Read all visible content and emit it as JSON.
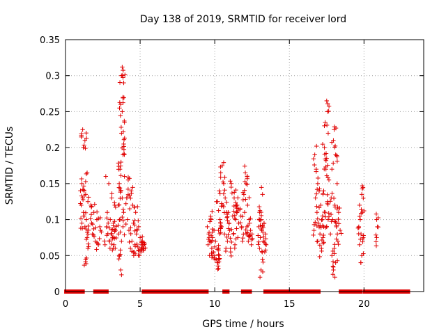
{
  "chart_data": {
    "type": "scatter",
    "title": "Day 138 of 2019, SRMTID for receiver lord",
    "xlabel": "GPS time / hours",
    "ylabel": "SRMTID / TECUs",
    "xlim": [
      0,
      24
    ],
    "ylim": [
      0,
      0.35
    ],
    "x_ticks": [
      "0",
      "5",
      "10",
      "15",
      "20"
    ],
    "x_tick_values": [
      0,
      5,
      10,
      15,
      20
    ],
    "y_ticks": [
      "0",
      "0.05",
      "0.1",
      "0.15",
      "0.2",
      "0.25",
      "0.3",
      "0.35"
    ],
    "y_tick_values": [
      0,
      0.05,
      0.1,
      0.15,
      0.2,
      0.25,
      0.3,
      0.35
    ],
    "grid": true,
    "marker": "+",
    "series_color": "#e00000",
    "zero_segments": [
      [
        0.05,
        1.15
      ],
      [
        2.0,
        2.2
      ],
      [
        2.45,
        2.75
      ],
      [
        5.25,
        9.45
      ],
      [
        10.65,
        10.85
      ],
      [
        11.9,
        12.35
      ],
      [
        13.4,
        16.95
      ],
      [
        18.45,
        19.75
      ],
      [
        20.05,
        21.95
      ],
      [
        22.05,
        22.95
      ]
    ],
    "clusters": [
      {
        "x0": 1.0,
        "x1": 1.55,
        "pts": [
          [
            1.15,
            0.225
          ],
          [
            1.3,
            0.21
          ],
          [
            1.2,
            0.2
          ],
          [
            1.45,
            0.165
          ],
          [
            1.1,
            0.15
          ],
          [
            1.25,
            0.14
          ],
          [
            1.35,
            0.135
          ],
          [
            1.05,
            0.12
          ],
          [
            1.5,
            0.125
          ],
          [
            1.2,
            0.11
          ],
          [
            1.4,
            0.1
          ],
          [
            1.1,
            0.095
          ],
          [
            1.3,
            0.09
          ],
          [
            1.45,
            0.075
          ],
          [
            1.5,
            0.06
          ],
          [
            1.35,
            0.045
          ],
          [
            1.15,
            0.13
          ],
          [
            1.25,
            0.105
          ]
        ]
      },
      {
        "x0": 1.6,
        "x1": 2.4,
        "pts": [
          [
            1.7,
            0.12
          ],
          [
            1.9,
            0.11
          ],
          [
            2.1,
            0.1
          ],
          [
            2.3,
            0.09
          ],
          [
            1.8,
            0.08
          ],
          [
            2.0,
            0.07
          ],
          [
            2.2,
            0.065
          ],
          [
            1.75,
            0.095
          ],
          [
            2.35,
            0.085
          ]
        ]
      },
      {
        "x0": 2.6,
        "x1": 3.4,
        "pts": [
          [
            2.7,
            0.16
          ],
          [
            2.9,
            0.15
          ],
          [
            3.1,
            0.13
          ],
          [
            3.3,
            0.12
          ],
          [
            2.8,
            0.11
          ],
          [
            3.0,
            0.1
          ],
          [
            3.2,
            0.095
          ],
          [
            2.75,
            0.09
          ],
          [
            3.35,
            0.085
          ],
          [
            3.05,
            0.08
          ],
          [
            2.95,
            0.07
          ],
          [
            3.25,
            0.065
          ],
          [
            2.65,
            0.065
          ],
          [
            3.15,
            0.075
          ]
        ]
      },
      {
        "x0": 3.5,
        "x1": 4.05,
        "pts": [
          [
            3.8,
            0.312
          ],
          [
            3.75,
            0.3
          ],
          [
            3.9,
            0.29
          ],
          [
            3.85,
            0.27
          ],
          [
            3.7,
            0.26
          ],
          [
            3.8,
            0.25
          ],
          [
            3.95,
            0.235
          ],
          [
            3.75,
            0.22
          ],
          [
            3.9,
            0.205
          ],
          [
            3.85,
            0.19
          ],
          [
            3.65,
            0.17
          ],
          [
            3.95,
            0.16
          ],
          [
            3.6,
            0.15
          ],
          [
            3.7,
            0.14
          ],
          [
            3.8,
            0.13
          ],
          [
            3.55,
            0.12
          ],
          [
            3.9,
            0.11
          ],
          [
            3.65,
            0.1
          ],
          [
            3.85,
            0.09
          ],
          [
            3.55,
            0.08
          ],
          [
            3.75,
            0.07
          ],
          [
            3.6,
            0.05
          ],
          [
            3.7,
            0.03
          ]
        ]
      },
      {
        "x0": 4.05,
        "x1": 5.4,
        "pts": [
          [
            4.2,
            0.155
          ],
          [
            4.4,
            0.14
          ],
          [
            4.1,
            0.13
          ],
          [
            4.5,
            0.12
          ],
          [
            4.3,
            0.115
          ],
          [
            4.7,
            0.11
          ],
          [
            4.15,
            0.1
          ],
          [
            4.55,
            0.095
          ],
          [
            4.9,
            0.09
          ],
          [
            4.25,
            0.085
          ],
          [
            4.75,
            0.08
          ],
          [
            5.0,
            0.075
          ],
          [
            4.45,
            0.07
          ],
          [
            5.1,
            0.068
          ],
          [
            4.65,
            0.065
          ],
          [
            4.85,
            0.062
          ],
          [
            5.2,
            0.06
          ],
          [
            5.05,
            0.055
          ],
          [
            4.95,
            0.05
          ],
          [
            4.6,
            0.055
          ],
          [
            5.25,
            0.065
          ],
          [
            4.35,
            0.06
          ],
          [
            5.15,
            0.07
          ]
        ]
      },
      {
        "x0": 9.45,
        "x1": 10.35,
        "pts": [
          [
            9.5,
            0.09
          ],
          [
            9.6,
            0.08
          ],
          [
            9.7,
            0.07
          ],
          [
            9.8,
            0.06
          ],
          [
            9.9,
            0.055
          ],
          [
            10.0,
            0.05
          ],
          [
            10.1,
            0.045
          ],
          [
            10.2,
            0.04
          ],
          [
            10.3,
            0.05
          ],
          [
            9.55,
            0.065
          ],
          [
            9.75,
            0.1
          ],
          [
            9.95,
            0.085
          ],
          [
            10.05,
            0.07
          ],
          [
            10.25,
            0.06
          ],
          [
            9.65,
            0.05
          ],
          [
            9.85,
            0.075
          ]
        ]
      },
      {
        "x0": 10.1,
        "x1": 11.0,
        "pts": [
          [
            10.5,
            0.175
          ],
          [
            10.4,
            0.165
          ],
          [
            10.6,
            0.15
          ],
          [
            10.3,
            0.14
          ],
          [
            10.7,
            0.13
          ],
          [
            10.2,
            0.125
          ],
          [
            10.55,
            0.12
          ],
          [
            10.8,
            0.11
          ],
          [
            10.35,
            0.1
          ],
          [
            10.95,
            0.095
          ],
          [
            10.45,
            0.09
          ],
          [
            10.65,
            0.08
          ],
          [
            10.85,
            0.07
          ],
          [
            10.25,
            0.085
          ],
          [
            10.75,
            0.06
          ]
        ]
      },
      {
        "x0": 10.8,
        "x1": 12.0,
        "pts": [
          [
            11.1,
            0.145
          ],
          [
            11.3,
            0.13
          ],
          [
            11.5,
            0.12
          ],
          [
            11.7,
            0.115
          ],
          [
            10.9,
            0.11
          ],
          [
            11.2,
            0.105
          ],
          [
            11.4,
            0.1
          ],
          [
            11.6,
            0.095
          ],
          [
            11.8,
            0.09
          ],
          [
            11.0,
            0.085
          ],
          [
            11.25,
            0.08
          ],
          [
            11.55,
            0.075
          ],
          [
            11.85,
            0.07
          ],
          [
            11.35,
            0.065
          ],
          [
            11.05,
            0.06
          ],
          [
            11.75,
            0.105
          ],
          [
            11.45,
            0.11
          ]
        ]
      },
      {
        "x0": 11.9,
        "x1": 12.6,
        "pts": [
          [
            12.05,
            0.165
          ],
          [
            12.1,
            0.15
          ],
          [
            11.95,
            0.135
          ],
          [
            12.2,
            0.12
          ],
          [
            12.0,
            0.11
          ],
          [
            12.3,
            0.1
          ],
          [
            12.15,
            0.09
          ],
          [
            12.4,
            0.085
          ],
          [
            12.5,
            0.08
          ],
          [
            12.25,
            0.07
          ],
          [
            12.45,
            0.065
          ],
          [
            12.35,
            0.095
          ]
        ]
      },
      {
        "x0": 12.9,
        "x1": 13.55,
        "pts": [
          [
            13.2,
            0.135
          ],
          [
            13.0,
            0.11
          ],
          [
            13.1,
            0.1
          ],
          [
            13.3,
            0.095
          ],
          [
            12.95,
            0.09
          ],
          [
            13.15,
            0.085
          ],
          [
            13.4,
            0.08
          ],
          [
            13.05,
            0.075
          ],
          [
            13.25,
            0.07
          ],
          [
            13.45,
            0.065
          ],
          [
            13.0,
            0.06
          ],
          [
            13.35,
            0.055
          ],
          [
            13.2,
            0.045
          ],
          [
            13.1,
            0.03
          ]
        ]
      },
      {
        "x0": 16.6,
        "x1": 17.4,
        "pts": [
          [
            16.7,
            0.19
          ],
          [
            16.8,
            0.17
          ],
          [
            16.9,
            0.15
          ],
          [
            17.0,
            0.14
          ],
          [
            16.75,
            0.13
          ],
          [
            17.1,
            0.12
          ],
          [
            16.85,
            0.11
          ],
          [
            17.2,
            0.1
          ],
          [
            16.95,
            0.095
          ],
          [
            17.3,
            0.09
          ],
          [
            16.65,
            0.085
          ],
          [
            17.05,
            0.08
          ],
          [
            17.25,
            0.075
          ],
          [
            16.9,
            0.07
          ],
          [
            17.15,
            0.06
          ]
        ]
      },
      {
        "x0": 17.2,
        "x1": 17.7,
        "pts": [
          [
            17.5,
            0.265
          ],
          [
            17.55,
            0.25
          ],
          [
            17.4,
            0.235
          ],
          [
            17.6,
            0.22
          ],
          [
            17.35,
            0.2
          ],
          [
            17.5,
            0.185
          ],
          [
            17.45,
            0.17
          ],
          [
            17.65,
            0.155
          ],
          [
            17.3,
            0.14
          ],
          [
            17.55,
            0.125
          ],
          [
            17.4,
            0.11
          ],
          [
            17.6,
            0.1
          ],
          [
            17.5,
            0.09
          ]
        ]
      },
      {
        "x0": 17.7,
        "x1": 18.5,
        "pts": [
          [
            18.0,
            0.225
          ],
          [
            17.95,
            0.21
          ],
          [
            18.1,
            0.19
          ],
          [
            17.85,
            0.17
          ],
          [
            18.2,
            0.15
          ],
          [
            17.8,
            0.13
          ],
          [
            18.05,
            0.12
          ],
          [
            18.3,
            0.11
          ],
          [
            17.9,
            0.1
          ],
          [
            18.15,
            0.09
          ],
          [
            18.4,
            0.085
          ],
          [
            17.75,
            0.08
          ],
          [
            18.25,
            0.07
          ],
          [
            18.0,
            0.06
          ],
          [
            17.85,
            0.05
          ],
          [
            18.1,
            0.04
          ],
          [
            17.95,
            0.03
          ],
          [
            18.05,
            0.02
          ]
        ]
      },
      {
        "x0": 19.6,
        "x1": 20.0,
        "pts": [
          [
            19.85,
            0.135
          ],
          [
            19.7,
            0.12
          ],
          [
            19.9,
            0.11
          ],
          [
            19.75,
            0.1
          ],
          [
            19.65,
            0.09
          ],
          [
            19.8,
            0.08
          ],
          [
            19.95,
            0.075
          ],
          [
            19.7,
            0.065
          ],
          [
            19.85,
            0.05
          ]
        ]
      },
      {
        "x0": 20.8,
        "x1": 20.95,
        "pts": [
          [
            20.85,
            0.1
          ],
          [
            20.9,
            0.09
          ],
          [
            20.85,
            0.075
          ]
        ]
      }
    ]
  }
}
